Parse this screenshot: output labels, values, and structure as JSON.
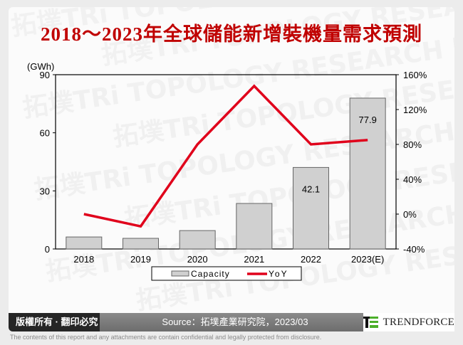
{
  "title": "2018～2023年全球儲能新增裝機量需求預測",
  "watermark_text": "拓墣TRi TOPOLOGY RESEARCH INSTITUTE",
  "chart_data": {
    "type": "bar+line",
    "title": "2018～2023年全球儲能新增裝機量需求預測",
    "categories": [
      "2018",
      "2019",
      "2020",
      "2021",
      "2022",
      "2023(E)"
    ],
    "series": [
      {
        "name": "Capacity",
        "type": "bar",
        "axis": "left",
        "values": [
          6.2,
          5.5,
          9.5,
          23.5,
          42.1,
          77.9
        ],
        "color": "#d0d0d0"
      },
      {
        "name": "YoY",
        "type": "line",
        "axis": "right",
        "values": [
          0,
          -14,
          80,
          147,
          80,
          85
        ],
        "color": "#e0001b"
      }
    ],
    "data_labels": {
      "2022": "42.1",
      "2023(E)": "77.9"
    },
    "ylabel": "(GWh)",
    "ylim": [
      0,
      90
    ],
    "yticks": [
      "0",
      "30",
      "60",
      "90"
    ],
    "y2lim": [
      -40,
      160
    ],
    "y2ticks": [
      "-40%",
      "0%",
      "40%",
      "80%",
      "120%",
      "160%"
    ],
    "legend": [
      "Capacity",
      "YoY"
    ],
    "legend_position": "bottom",
    "grid": false
  },
  "footer": {
    "copyright": "版權所有 · 翻印必究",
    "source": "Source：拓墣產業研究院，2023/03",
    "brand": "TRENDFORCE",
    "disclaimer": "The contents of this report and any attachments are contain confidential and legally protected from disclosure."
  }
}
